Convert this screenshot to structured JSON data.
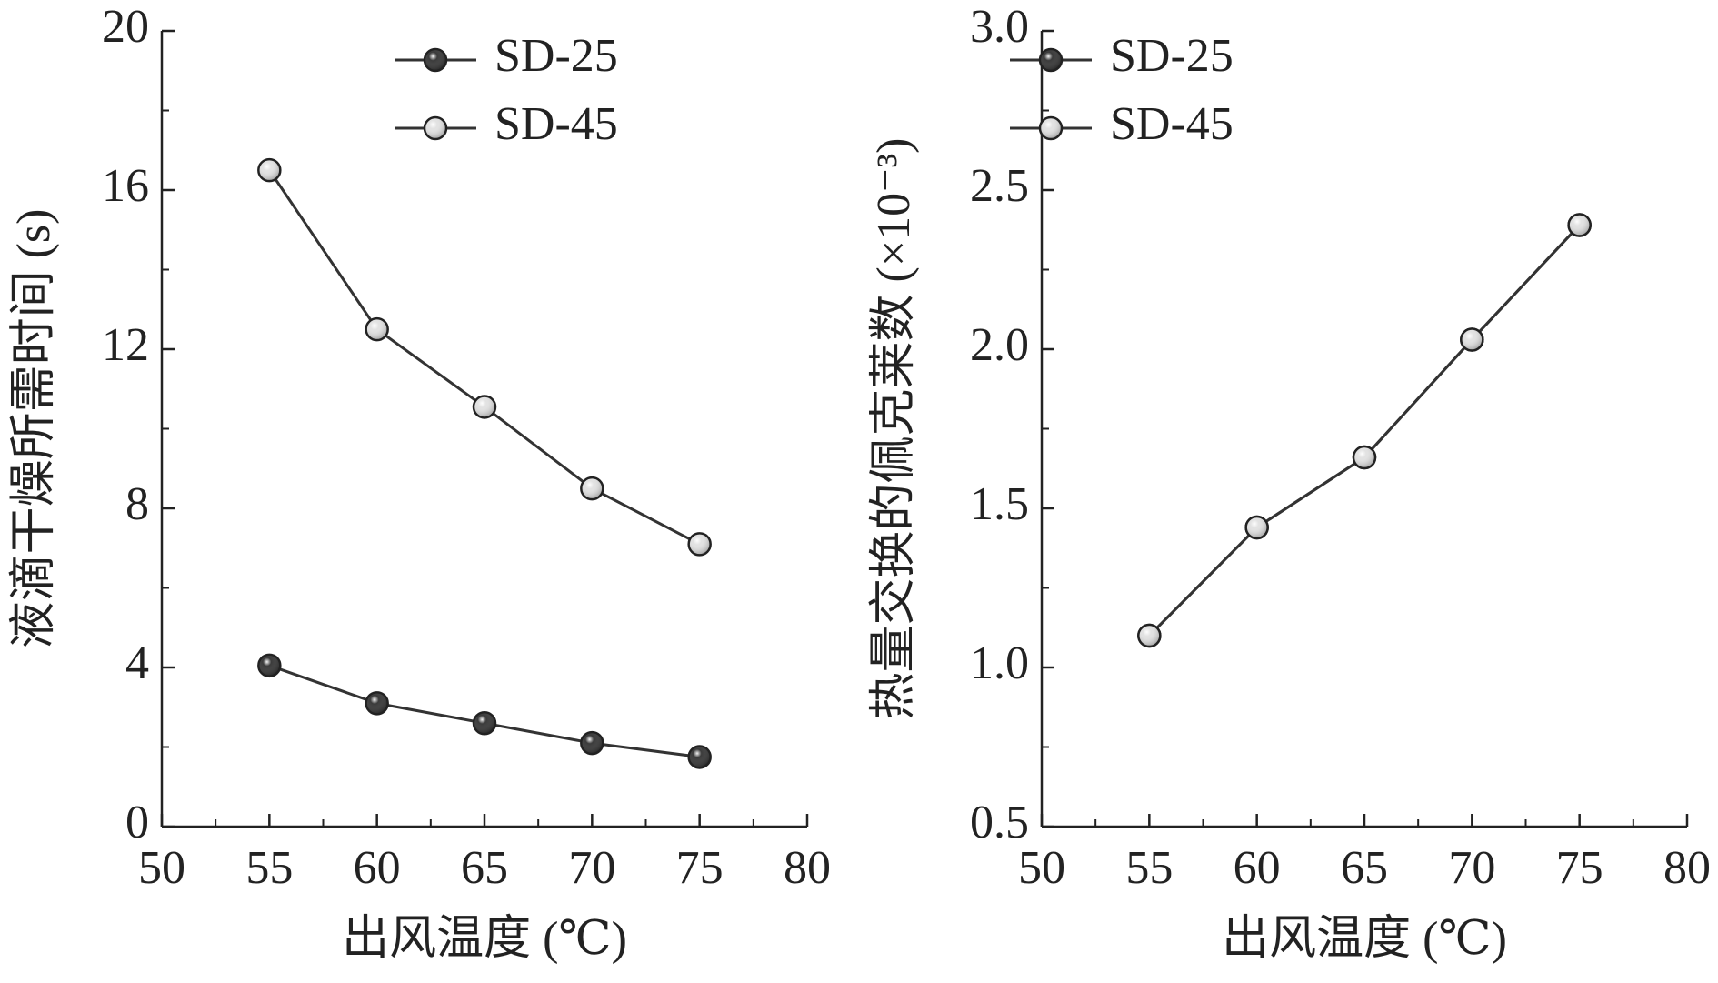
{
  "chart_data": [
    {
      "type": "line",
      "xlabel": "出风温度 (℃)",
      "ylabel": "液滴干燥所需时间 (s)",
      "x": [
        55,
        60,
        65,
        70,
        75
      ],
      "series": [
        {
          "name": "SD-25",
          "color": "#3a3a3a",
          "values": [
            4.05,
            3.1,
            2.6,
            2.1,
            1.75
          ]
        },
        {
          "name": "SD-45",
          "color": "#e2e2e2",
          "values": [
            16.5,
            12.5,
            10.55,
            8.5,
            7.1
          ]
        }
      ],
      "xlim": [
        50,
        80
      ],
      "xticks": [
        50,
        55,
        60,
        65,
        70,
        75,
        80
      ],
      "ylim": [
        0,
        20
      ],
      "yticks": [
        0,
        4,
        8,
        12,
        16,
        20
      ],
      "legend": "upper right"
    },
    {
      "type": "line",
      "xlabel": "出风温度 (℃)",
      "ylabel": "热量交换的佩克莱数 (×10⁻³)",
      "x": [
        55,
        60,
        65,
        70,
        75
      ],
      "series": [
        {
          "name": "SD-25",
          "color": "#3a3a3a",
          "values": [
            1.1,
            1.44,
            1.66,
            2.03,
            2.39
          ]
        },
        {
          "name": "SD-45",
          "color": "#e2e2e2",
          "values": [
            1.1,
            1.44,
            1.66,
            2.03,
            2.39
          ]
        }
      ],
      "xlim": [
        50,
        80
      ],
      "xticks": [
        50,
        55,
        60,
        65,
        70,
        75,
        80
      ],
      "ylim": [
        0.5,
        3.0
      ],
      "yticks": [
        0.5,
        {
          "value": 1.0,
          "label": "1.0"
        },
        1.5,
        {
          "value": 2.0,
          "label": "2.0"
        },
        2.5,
        {
          "value": 3.0,
          "label": "3.0"
        }
      ],
      "legend": "upper right"
    }
  ]
}
